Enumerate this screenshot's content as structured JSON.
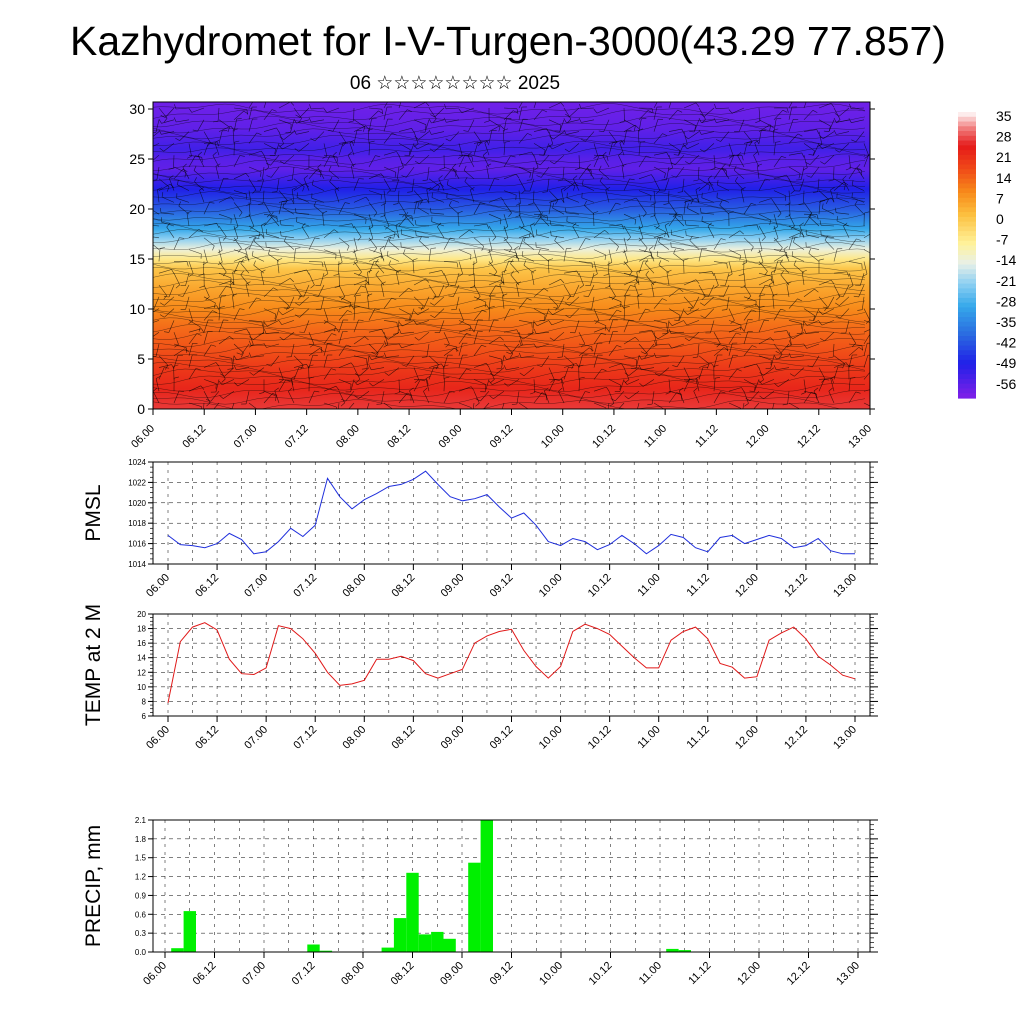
{
  "title": "Kazhydromet for I-V-Turgen-3000(43.29 77.857)",
  "subtitle": "06 ☆☆☆☆☆☆☆☆ 2025",
  "colors": {
    "pmsl_line": "#1f2fdc",
    "temp_line": "#e01818",
    "precip_bar": "#00f000",
    "grid": "#000000"
  },
  "chart_data": [
    {
      "id": "cross_section",
      "type": "heatmap",
      "title": "",
      "xlabel": "",
      "ylabel": "",
      "x_tick_labels": [
        "06.00",
        "06.12",
        "07.00",
        "07.12",
        "08.00",
        "08.12",
        "09.00",
        "09.12",
        "10.00",
        "10.12",
        "11.00",
        "11.12",
        "12.00",
        "12.12",
        "13.00"
      ],
      "y_ticks": [
        0,
        5,
        10,
        15,
        20,
        25,
        30
      ],
      "ylim": [
        0,
        30.7
      ],
      "layers": [
        {
          "y": 0,
          "value": 28
        },
        {
          "y": 2,
          "value": 24
        },
        {
          "y": 4,
          "value": 21
        },
        {
          "y": 6,
          "value": 17
        },
        {
          "y": 8,
          "value": 14
        },
        {
          "y": 10,
          "value": 10
        },
        {
          "y": 12,
          "value": 6
        },
        {
          "y": 14,
          "value": 1
        },
        {
          "y": 15,
          "value": -6
        },
        {
          "y": 16,
          "value": -14
        },
        {
          "y": 17,
          "value": -22
        },
        {
          "y": 18,
          "value": -30
        },
        {
          "y": 19,
          "value": -36
        },
        {
          "y": 20,
          "value": -42
        },
        {
          "y": 21,
          "value": -46
        },
        {
          "y": 22,
          "value": -50
        },
        {
          "y": 23,
          "value": -54
        },
        {
          "y": 24,
          "value": -58
        },
        {
          "y": 25,
          "value": -57
        },
        {
          "y": 26,
          "value": -54
        },
        {
          "y": 27,
          "value": -56
        },
        {
          "y": 28,
          "value": -58
        },
        {
          "y": 30.7,
          "value": -60
        }
      ],
      "colorbar_labels": [
        "35",
        "28",
        "21",
        "14",
        "7",
        "0",
        "-7",
        "-14",
        "-21",
        "-28",
        "-35",
        "-42",
        "-49",
        "-56"
      ],
      "colorbar_scale": [
        {
          "value": 38,
          "color": "#ffffff"
        },
        {
          "value": 32,
          "color": "#f07878"
        },
        {
          "value": 26,
          "color": "#e51a1a"
        },
        {
          "value": 18,
          "color": "#f04a18"
        },
        {
          "value": 10,
          "color": "#f78a1a"
        },
        {
          "value": 2,
          "color": "#fcc040"
        },
        {
          "value": -8,
          "color": "#fff29a"
        },
        {
          "value": -15,
          "color": "#e8f0e8"
        },
        {
          "value": -22,
          "color": "#8ed0f2"
        },
        {
          "value": -30,
          "color": "#35a8ea"
        },
        {
          "value": -40,
          "color": "#2a6ae0"
        },
        {
          "value": -50,
          "color": "#2020e8"
        },
        {
          "value": -62,
          "color": "#8020e8"
        }
      ]
    },
    {
      "id": "pmsl",
      "type": "line",
      "ylabel": "PMSL",
      "ylim": [
        1014,
        1024
      ],
      "y_ticks": [
        1014,
        1016,
        1018,
        1020,
        1022,
        1024
      ],
      "x_tick_labels": [
        "06.00",
        "06.12",
        "07.00",
        "07.12",
        "08.00",
        "08.12",
        "09.00",
        "09.12",
        "10.00",
        "10.12",
        "11.00",
        "11.12",
        "12.00",
        "12.12",
        "13.00"
      ],
      "xlim": [
        0,
        168
      ],
      "x_hours": [
        0,
        3,
        6,
        9,
        12,
        15,
        18,
        21,
        24,
        27,
        30,
        33,
        36,
        39,
        42,
        45,
        48,
        51,
        54,
        57,
        60,
        63,
        66,
        69,
        72,
        75,
        78,
        81,
        84,
        87,
        90,
        93,
        96,
        99,
        102,
        105,
        108,
        111,
        114,
        117,
        120,
        123,
        126,
        129,
        132,
        135,
        138,
        141,
        144,
        147,
        150,
        153,
        156,
        159,
        162,
        165,
        168
      ],
      "values": [
        1016.8,
        1015.9,
        1015.8,
        1015.6,
        1016.0,
        1017.0,
        1016.4,
        1015.0,
        1015.2,
        1016.2,
        1017.5,
        1016.7,
        1017.8,
        1022.4,
        1020.6,
        1019.4,
        1020.3,
        1020.9,
        1021.6,
        1021.8,
        1022.3,
        1023.1,
        1021.8,
        1020.6,
        1020.2,
        1020.4,
        1020.8,
        1019.6,
        1018.5,
        1019.0,
        1017.8,
        1016.2,
        1015.8,
        1016.5,
        1016.2,
        1015.4,
        1015.9,
        1016.8,
        1016.0,
        1015.0,
        1015.8,
        1016.9,
        1016.6,
        1015.6,
        1015.2,
        1016.6,
        1016.8,
        1016.0,
        1016.4,
        1016.8,
        1016.5,
        1015.6,
        1015.8,
        1016.5,
        1015.3,
        1015.0,
        1015.0
      ]
    },
    {
      "id": "temp2m",
      "type": "line",
      "ylabel": "TEMP at 2 M",
      "ylim": [
        6,
        20
      ],
      "y_ticks": [
        6,
        8,
        10,
        12,
        14,
        16,
        18,
        20
      ],
      "x_tick_labels": [
        "06.00",
        "06.12",
        "07.00",
        "07.12",
        "08.00",
        "08.12",
        "09.00",
        "09.12",
        "10.00",
        "10.12",
        "11.00",
        "11.12",
        "12.00",
        "12.12",
        "13.00"
      ],
      "xlim": [
        0,
        168
      ],
      "x_hours": [
        0,
        3,
        6,
        9,
        12,
        15,
        18,
        21,
        24,
        27,
        30,
        33,
        36,
        39,
        42,
        45,
        48,
        51,
        54,
        57,
        60,
        63,
        66,
        69,
        72,
        75,
        78,
        81,
        84,
        87,
        90,
        93,
        96,
        99,
        102,
        105,
        108,
        111,
        114,
        117,
        120,
        123,
        126,
        129,
        132,
        135,
        138,
        141,
        144,
        147,
        150,
        153,
        156,
        159,
        162,
        165,
        168
      ],
      "values": [
        7.8,
        16.2,
        18.2,
        18.8,
        17.8,
        13.8,
        11.8,
        11.7,
        12.6,
        18.4,
        18.0,
        16.6,
        14.6,
        12.0,
        10.2,
        10.4,
        10.9,
        13.8,
        13.8,
        14.2,
        13.6,
        11.8,
        11.2,
        11.8,
        12.4,
        16.0,
        17.0,
        17.6,
        17.9,
        15.0,
        12.8,
        11.2,
        12.8,
        17.6,
        18.6,
        18.0,
        17.2,
        15.6,
        14.0,
        12.6,
        12.6,
        16.4,
        17.6,
        18.2,
        16.6,
        13.2,
        12.7,
        11.2,
        11.4,
        16.4,
        17.4,
        18.2,
        16.6,
        14.2,
        13.0,
        11.6,
        11.1
      ]
    },
    {
      "id": "precip",
      "type": "bar",
      "ylabel": "PRECIP, mm",
      "ylim": [
        0,
        2.1
      ],
      "y_tick_labels": [
        "0.0",
        "0.3",
        "0.6",
        "0.9",
        "1.2",
        "1.5",
        "1.8",
        "2.1"
      ],
      "x_tick_labels": [
        "06.00",
        "06.12",
        "07.00",
        "07.12",
        "08.00",
        "08.12",
        "09.00",
        "09.12",
        "10.00",
        "10.12",
        "11.00",
        "11.12",
        "12.00",
        "12.12",
        "13.00"
      ],
      "xlim": [
        0,
        168
      ],
      "bar_hours": 3,
      "bars": [
        {
          "hour": 3,
          "value": 0.06
        },
        {
          "hour": 6,
          "value": 0.65
        },
        {
          "hour": 36,
          "value": 0.12
        },
        {
          "hour": 39,
          "value": 0.02
        },
        {
          "hour": 54,
          "value": 0.07
        },
        {
          "hour": 57,
          "value": 0.54
        },
        {
          "hour": 60,
          "value": 1.26
        },
        {
          "hour": 63,
          "value": 0.28
        },
        {
          "hour": 66,
          "value": 0.32
        },
        {
          "hour": 69,
          "value": 0.21
        },
        {
          "hour": 75,
          "value": 1.42
        },
        {
          "hour": 78,
          "value": 2.1
        },
        {
          "hour": 123,
          "value": 0.05
        },
        {
          "hour": 126,
          "value": 0.03
        }
      ]
    }
  ]
}
